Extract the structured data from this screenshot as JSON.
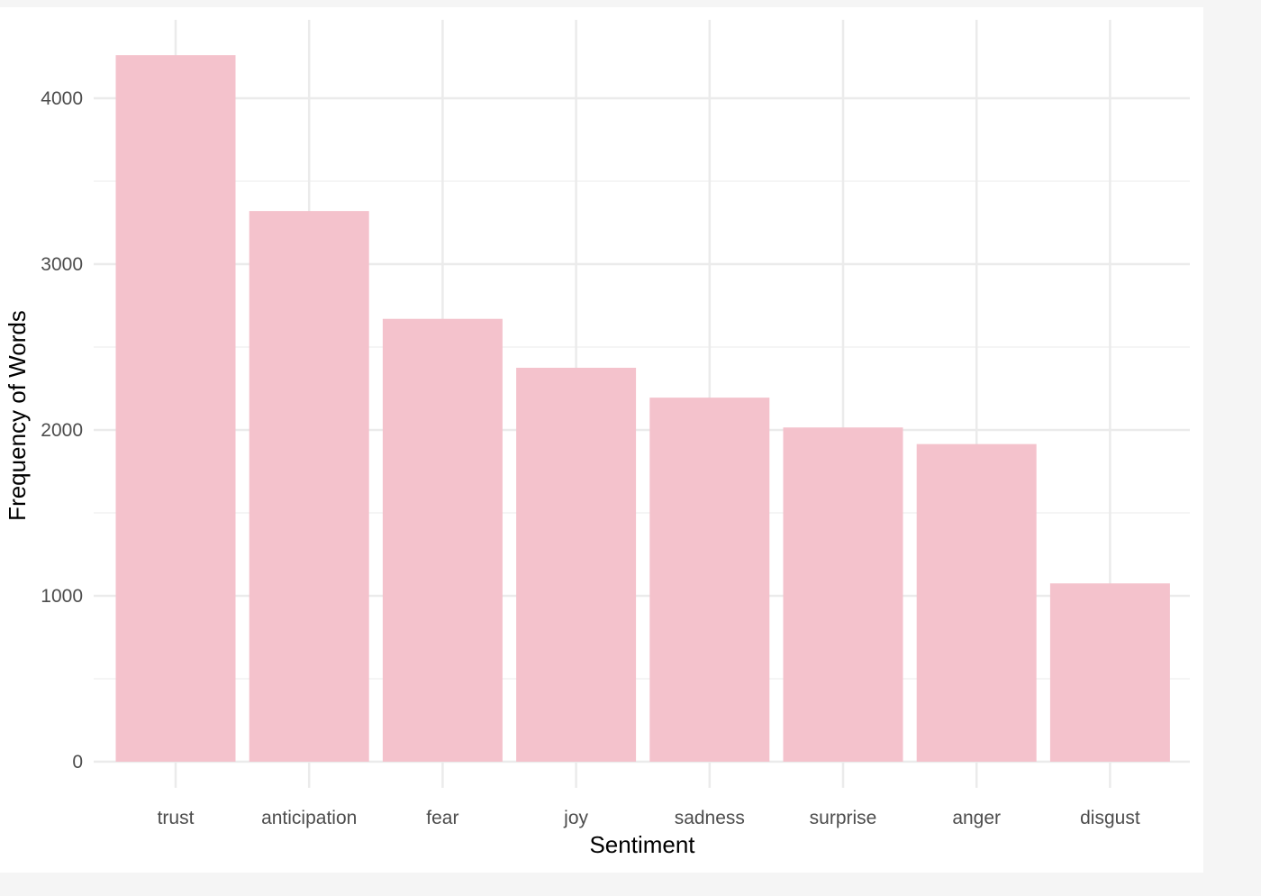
{
  "chart_data": {
    "type": "bar",
    "categories": [
      "trust",
      "anticipation",
      "fear",
      "joy",
      "sadness",
      "surprise",
      "anger",
      "disgust"
    ],
    "values": [
      4260,
      3320,
      2670,
      2375,
      2195,
      2015,
      1915,
      1075
    ],
    "xlabel": "Sentiment",
    "ylabel": "Frequency of Words",
    "ylim": [
      0,
      4250
    ],
    "yticks": [
      0,
      1000,
      2000,
      3000,
      4000
    ],
    "grid": true,
    "colors": {
      "bar": "#f4c2cc",
      "grid_major": "#ebebeb",
      "grid_minor": "#f2f2f2"
    }
  }
}
